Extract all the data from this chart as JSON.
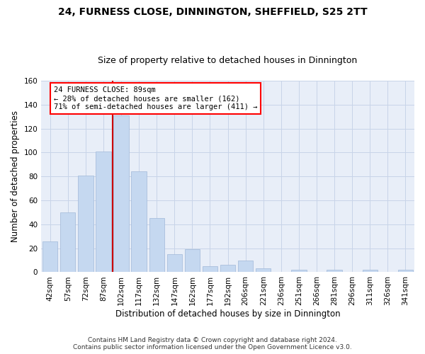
{
  "title": "24, FURNESS CLOSE, DINNINGTON, SHEFFIELD, S25 2TT",
  "subtitle": "Size of property relative to detached houses in Dinnington",
  "xlabel": "Distribution of detached houses by size in Dinnington",
  "ylabel": "Number of detached properties",
  "categories": [
    "42sqm",
    "57sqm",
    "72sqm",
    "87sqm",
    "102sqm",
    "117sqm",
    "132sqm",
    "147sqm",
    "162sqm",
    "177sqm",
    "192sqm",
    "206sqm",
    "221sqm",
    "236sqm",
    "251sqm",
    "266sqm",
    "281sqm",
    "296sqm",
    "311sqm",
    "326sqm",
    "341sqm"
  ],
  "values": [
    26,
    50,
    81,
    101,
    131,
    84,
    45,
    15,
    19,
    5,
    6,
    10,
    3,
    0,
    2,
    0,
    2,
    0,
    2,
    0,
    2
  ],
  "bar_color": "#c5d8f0",
  "bar_edge_color": "#a0b8d8",
  "red_line_x": 3.5,
  "red_line_label": "24 FURNESS CLOSE: 89sqm",
  "annotation_line1": "← 28% of detached houses are smaller (162)",
  "annotation_line2": "71% of semi-detached houses are larger (411) →",
  "annotation_box_color": "white",
  "annotation_box_edge_color": "red",
  "red_line_color": "#cc0000",
  "ylim": [
    0,
    160
  ],
  "yticks": [
    0,
    20,
    40,
    60,
    80,
    100,
    120,
    140,
    160
  ],
  "grid_color": "#c8d4e8",
  "bg_color": "#e8eef8",
  "footer_line1": "Contains HM Land Registry data © Crown copyright and database right 2024.",
  "footer_line2": "Contains public sector information licensed under the Open Government Licence v3.0.",
  "title_fontsize": 10,
  "subtitle_fontsize": 9,
  "xlabel_fontsize": 8.5,
  "ylabel_fontsize": 8.5,
  "tick_fontsize": 7.5,
  "annot_fontsize": 7.5,
  "footer_fontsize": 6.5
}
